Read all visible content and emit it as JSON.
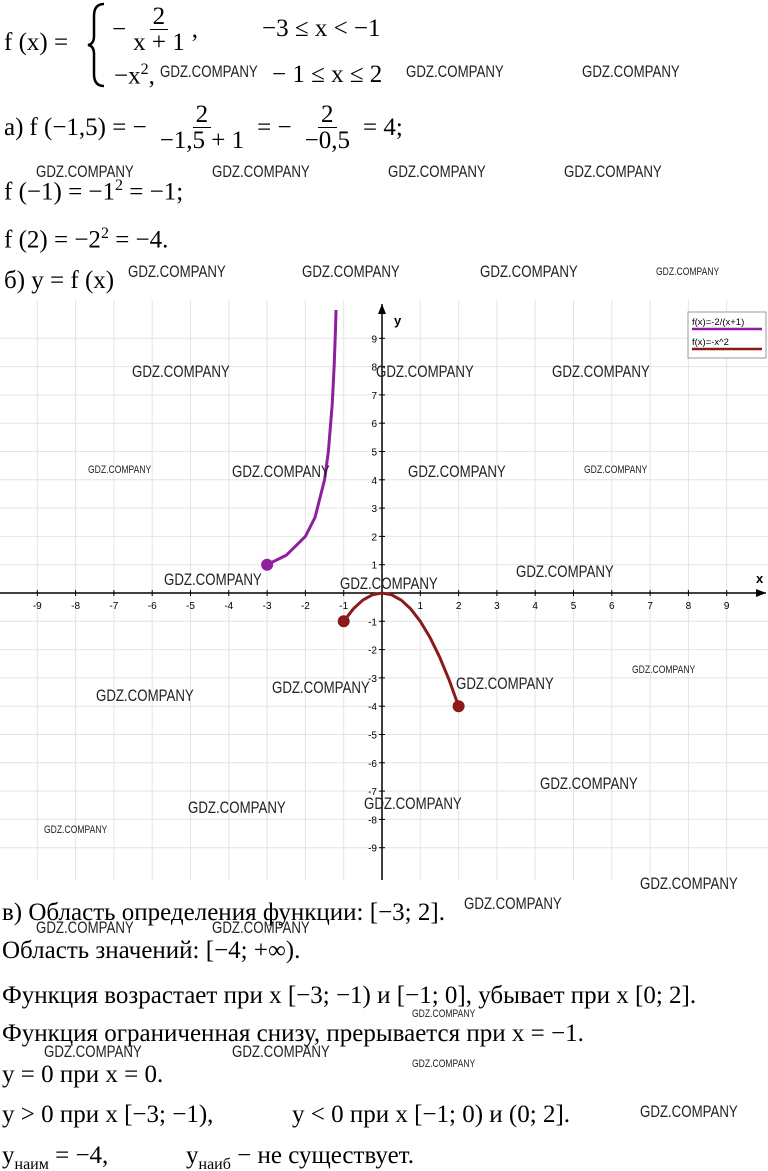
{
  "definition": {
    "lhs": "f (x) =",
    "case1": {
      "sign": "−",
      "numerator": "2",
      "denominator": "x + 1",
      "tail": ",",
      "condition": "−3 ≤ x < −1"
    },
    "case2": {
      "expr": "−x",
      "exp": "2",
      "tail": ",",
      "condition": "− 1 ≤ x ≤ 2"
    }
  },
  "part_a": {
    "label": "а)",
    "lhs": "f (−1,5) = −",
    "frac1": {
      "num": "2",
      "den": "−1,5 + 1"
    },
    "mid": "= −",
    "frac2": {
      "num": "2",
      "den": "−0,5"
    },
    "rhs": "= 4;"
  },
  "line_f_neg1": {
    "text": "f (−1) = −1",
    "exp": "2",
    "tail": "= −1;"
  },
  "line_f_2": {
    "text": "f (2) = −2",
    "exp": "2",
    "tail": "= −4."
  },
  "part_b": "б) y = f (x)",
  "graph": {
    "x_label": "x",
    "y_label": "y",
    "xticks": [
      -9,
      -8,
      -7,
      -6,
      -5,
      -4,
      -3,
      -2,
      -1,
      1,
      2,
      3,
      4,
      5,
      6,
      7,
      8,
      9
    ],
    "yticks": [
      -9,
      -8,
      -7,
      -6,
      -5,
      -4,
      -3,
      -2,
      -1,
      1,
      2,
      3,
      4,
      5,
      6,
      7,
      8,
      9
    ],
    "legend": [
      "f(x)=-2/(x+1)",
      "f(x)=-x^2"
    ],
    "curves": [
      {
        "color": "#8e1f9e",
        "x": [
          -3,
          -2.5,
          -2,
          -1.75,
          -1.5,
          -1.4,
          -1.3,
          -1.25,
          -1.22,
          -1.2
        ],
        "y": [
          1,
          1.333,
          2,
          2.667,
          4,
          5,
          6.667,
          8,
          9.09,
          10
        ]
      },
      {
        "color": "#8b1a1a",
        "x": [
          -1,
          -0.75,
          -0.5,
          -0.25,
          0,
          0.25,
          0.5,
          0.75,
          1,
          1.25,
          1.5,
          1.75,
          2
        ],
        "y": [
          -1,
          -0.5625,
          -0.25,
          -0.0625,
          0,
          -0.0625,
          -0.25,
          -0.5625,
          -1,
          -1.5625,
          -2.25,
          -3.0625,
          -4
        ]
      }
    ]
  },
  "part_v": [
    "в) Область определения функции: [−3; 2].",
    "Область значений: [−4; +∞).",
    "Функция возрастает при x [−3; −1) и [−1; 0], убывает при x [0; 2].",
    "Функция ограниченная снизу, прерывается при x = −1.",
    "y = 0 при x = 0."
  ],
  "signs": {
    "pos": "y > 0 при x [−3; −1),",
    "neg": "y < 0 при x [−1; 0) и (0; 2]."
  },
  "extrema": {
    "y1": "y",
    "sub1": "наим",
    "v1": "= −4,",
    "y2": "y",
    "sub2": "наиб",
    "v2": "− не существует."
  },
  "watermark": "GDZ.COMPANY"
}
